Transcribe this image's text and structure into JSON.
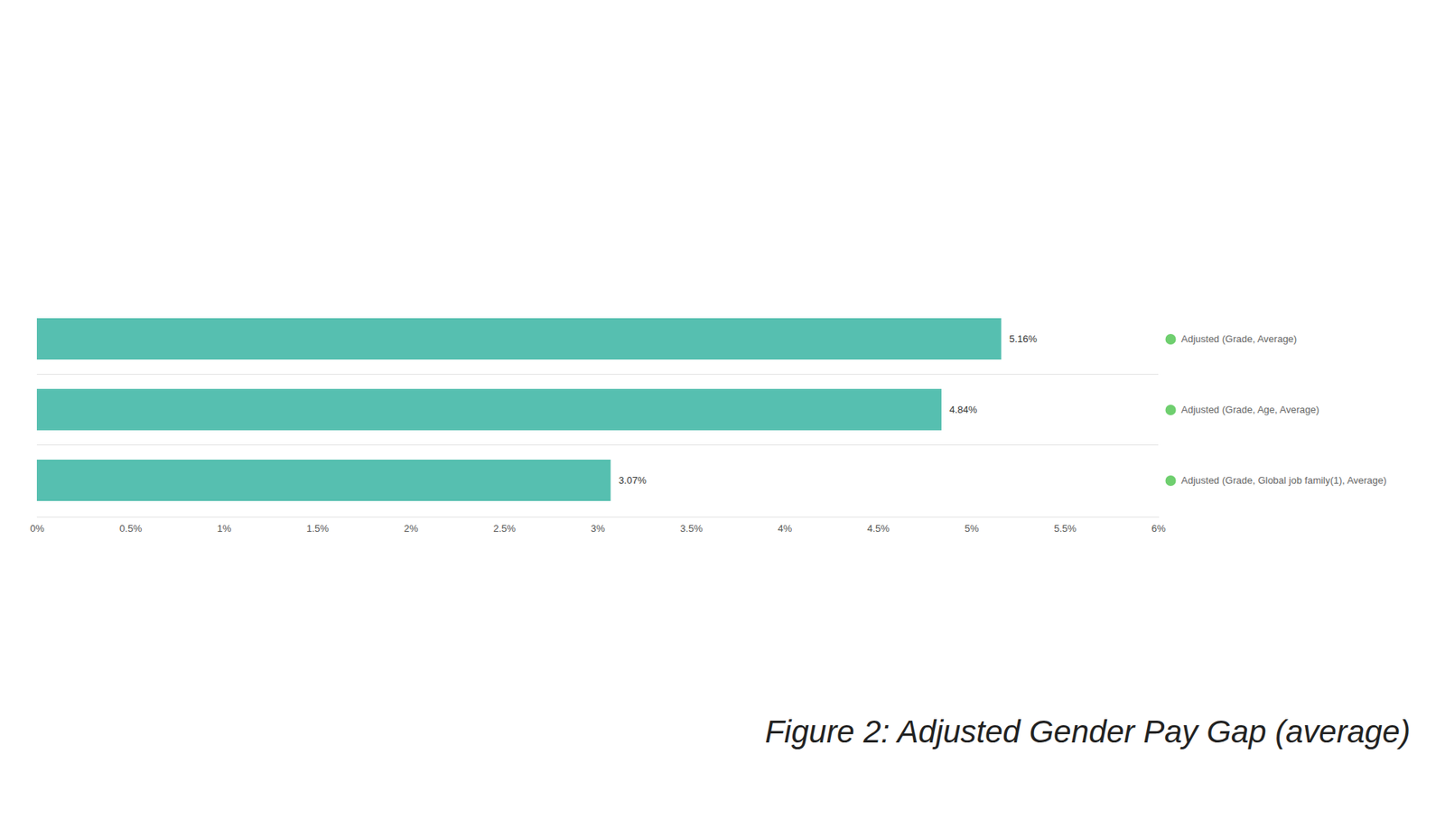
{
  "chart_data": {
    "type": "bar",
    "orientation": "horizontal",
    "title": "Figure 2: Adjusted Gender Pay Gap (average)",
    "categories": [
      "Adjusted (Grade, Average)",
      "Adjusted (Grade, Age, Average)",
      "Adjusted (Grade, Global job family(1), Average)"
    ],
    "values": [
      5.16,
      4.84,
      3.07
    ],
    "value_labels": [
      "5.16%",
      "4.84%",
      "3.07%"
    ],
    "data_labels": true,
    "color": "#56bfb0",
    "xlim": [
      0,
      6
    ],
    "xticks": [
      {
        "value": 0,
        "label": "0%"
      },
      {
        "value": 0.5,
        "label": "0.5%"
      },
      {
        "value": 1,
        "label": "1%"
      },
      {
        "value": 1.5,
        "label": "1.5%"
      },
      {
        "value": 2,
        "label": "2%"
      },
      {
        "value": 2.5,
        "label": "2.5%"
      },
      {
        "value": 3,
        "label": "3%"
      },
      {
        "value": 3.5,
        "label": "3.5%"
      },
      {
        "value": 4,
        "label": "4%"
      },
      {
        "value": 4.5,
        "label": "4.5%"
      },
      {
        "value": 5,
        "label": "5%"
      },
      {
        "value": 5.5,
        "label": "5.5%"
      },
      {
        "value": 6,
        "label": "6%"
      }
    ],
    "grid": false,
    "legend": "right"
  }
}
